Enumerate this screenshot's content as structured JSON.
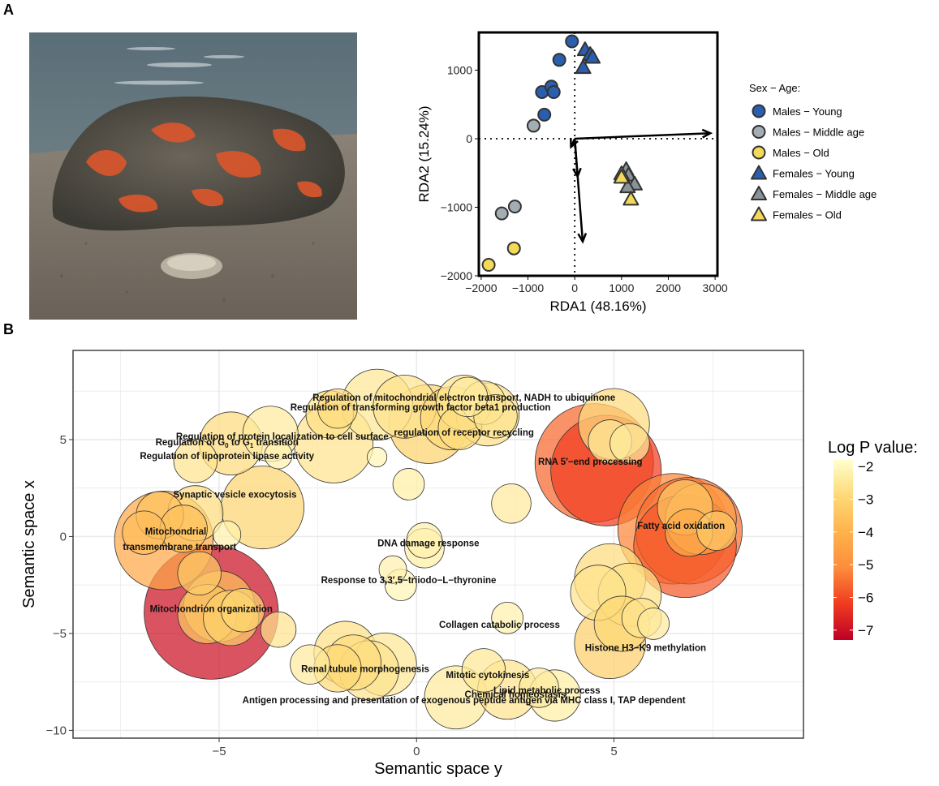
{
  "panel_a_letter": "A",
  "panel_b_letter": "B",
  "photo": {
    "description_icon": "oyster-photo-icon"
  },
  "chart_data": [
    {
      "type": "scatter",
      "xlabel": "RDA1 (48.16%)",
      "ylabel": "RDA2 (15.24%)",
      "xlim": [
        -2050,
        3050
      ],
      "ylim": [
        -2000,
        1550
      ],
      "xticks": [
        -2000,
        -1000,
        0,
        1000,
        2000,
        3000
      ],
      "xtick_labels": [
        "−2000",
        "−1000",
        "0",
        "1000",
        "2000",
        "3000"
      ],
      "yticks": [
        -2000,
        -1000,
        0,
        1000
      ],
      "ytick_labels": [
        "−2000",
        "−1000",
        "0",
        "1000"
      ],
      "grid": false,
      "legend_title": "Sex − Age:",
      "legend_position": "right",
      "series": [
        {
          "name": "Males − Young",
          "shape": "circle",
          "color": "#2a5fb0",
          "points": [
            [
              -700,
              680
            ],
            [
              -500,
              760
            ],
            [
              -450,
              680
            ],
            [
              -330,
              1150
            ],
            [
              -650,
              350
            ],
            [
              -60,
              1420
            ]
          ]
        },
        {
          "name": "Males − Middle age",
          "shape": "circle",
          "color": "#a4adb2",
          "points": [
            [
              -880,
              190
            ],
            [
              -1560,
              -1090
            ],
            [
              -1280,
              -990
            ]
          ]
        },
        {
          "name": "Males − Old",
          "shape": "circle",
          "color": "#f3d957",
          "points": [
            [
              -1300,
              -1600
            ],
            [
              -1840,
              -1840
            ]
          ]
        },
        {
          "name": "Females − Young",
          "shape": "triangle",
          "color": "#2a5fb0",
          "points": [
            [
              220,
              1300
            ],
            [
              330,
              1230
            ],
            [
              180,
              1040
            ],
            [
              380,
              1190
            ]
          ]
        },
        {
          "name": "Females − Middle age",
          "shape": "triangle",
          "color": "#8a9298",
          "points": [
            [
              1100,
              -450
            ],
            [
              1150,
              -530
            ],
            [
              1280,
              -660
            ],
            [
              1130,
              -700
            ]
          ]
        },
        {
          "name": "Females − Old",
          "shape": "triangle",
          "color": "#f3d957",
          "points": [
            [
              1000,
              -510
            ],
            [
              1000,
              -560
            ],
            [
              1200,
              -880
            ]
          ]
        }
      ],
      "arrows": [
        {
          "from": [
            0,
            0
          ],
          "to": [
            2900,
            80
          ]
        },
        {
          "from": [
            0,
            0
          ],
          "to": [
            -80,
            -120
          ]
        },
        {
          "from": [
            0,
            0
          ],
          "to": [
            60,
            -550
          ]
        },
        {
          "from": [
            0,
            0
          ],
          "to": [
            170,
            -1500
          ]
        }
      ],
      "reference_lines": {
        "x": 0,
        "y": 0,
        "style": "dotted"
      }
    },
    {
      "type": "scatter",
      "subtype": "bubble",
      "xlabel": "Semantic space y",
      "ylabel": "Semantic space x",
      "xlim": [
        -8.7,
        9.8
      ],
      "ylim": [
        -10.4,
        9.6
      ],
      "xticks": [
        -5,
        0,
        5
      ],
      "xtick_labels": [
        "−5",
        "0",
        "5"
      ],
      "yticks": [
        -10,
        -5,
        0,
        5
      ],
      "ytick_labels": [
        "−10",
        "−5",
        "0",
        "5"
      ],
      "grid": true,
      "legend_title": "Log P value:",
      "legend_position": "right",
      "colorbar": {
        "ticks": [
          -2,
          -3,
          -4,
          -5,
          -6,
          -7
        ],
        "tick_labels": [
          "−2",
          "−3",
          "−4",
          "−5",
          "−6",
          "−7"
        ],
        "range": [
          -7.3,
          -1.8
        ],
        "stops": [
          "#ffffcc",
          "#fed976",
          "#feb24c",
          "#fd8d3c",
          "#f03b20",
          "#bd0026"
        ]
      },
      "bubbles": [
        {
          "x": -5.2,
          "y": -3.9,
          "r": 1.7,
          "logp": -7.0
        },
        {
          "x": -6.4,
          "y": -0.2,
          "r": 1.25,
          "logp": -4.3
        },
        {
          "x": -5.0,
          "y": -3.6,
          "r": 0.9,
          "logp": -3.6
        },
        {
          "x": -5.3,
          "y": -4.0,
          "r": 0.75,
          "logp": -3.4
        },
        {
          "x": -4.7,
          "y": -4.2,
          "r": 0.7,
          "logp": -3.2
        },
        {
          "x": -5.5,
          "y": -1.9,
          "r": 0.55,
          "logp": -3.3
        },
        {
          "x": -4.4,
          "y": -3.8,
          "r": 0.55,
          "logp": -3.0
        },
        {
          "x": -6.5,
          "y": 1.1,
          "r": 0.6,
          "logp": -3.5
        },
        {
          "x": -5.9,
          "y": 0.4,
          "r": 0.6,
          "logp": -3.6
        },
        {
          "x": -6.9,
          "y": 0.2,
          "r": 0.55,
          "logp": -3.7
        },
        {
          "x": -5.6,
          "y": 1.2,
          "r": 0.7,
          "logp": -2.8
        },
        {
          "x": -4.8,
          "y": 0.1,
          "r": 0.35,
          "logp": -2.2
        },
        {
          "x": -3.9,
          "y": 1.5,
          "r": 1.05,
          "logp": -3.0
        },
        {
          "x": -5.6,
          "y": 3.9,
          "r": 0.55,
          "logp": -2.6
        },
        {
          "x": -4.7,
          "y": 4.8,
          "r": 0.8,
          "logp": -2.8
        },
        {
          "x": -3.7,
          "y": 5.3,
          "r": 0.7,
          "logp": -2.4
        },
        {
          "x": -3.5,
          "y": 4.2,
          "r": 0.35,
          "logp": -2.2
        },
        {
          "x": -2.2,
          "y": 6.3,
          "r": 0.6,
          "logp": -2.7
        },
        {
          "x": -2.0,
          "y": 6.6,
          "r": 0.5,
          "logp": -2.8
        },
        {
          "x": -2.1,
          "y": 4.8,
          "r": 1.0,
          "logp": -2.6
        },
        {
          "x": -1.0,
          "y": 6.8,
          "r": 0.9,
          "logp": -2.5
        },
        {
          "x": -0.3,
          "y": 6.7,
          "r": 0.8,
          "logp": -2.6
        },
        {
          "x": 0.3,
          "y": 5.8,
          "r": 1.0,
          "logp": -3.1
        },
        {
          "x": 1.2,
          "y": 6.9,
          "r": 0.7,
          "logp": -2.6
        },
        {
          "x": 0.9,
          "y": 6.1,
          "r": 0.8,
          "logp": -2.9
        },
        {
          "x": 1.8,
          "y": 6.3,
          "r": 0.8,
          "logp": -2.7
        },
        {
          "x": 1.1,
          "y": 5.6,
          "r": 0.55,
          "logp": -2.8
        },
        {
          "x": 1.7,
          "y": 6.9,
          "r": 0.55,
          "logp": -2.5
        },
        {
          "x": 1.3,
          "y": 7.2,
          "r": 0.5,
          "logp": -2.4
        },
        {
          "x": 2.0,
          "y": 6.2,
          "r": 0.55,
          "logp": -2.6
        },
        {
          "x": -1.0,
          "y": 4.1,
          "r": 0.25,
          "logp": -2.1
        },
        {
          "x": -0.2,
          "y": 2.7,
          "r": 0.4,
          "logp": -2.3
        },
        {
          "x": 2.4,
          "y": 1.7,
          "r": 0.5,
          "logp": -2.4
        },
        {
          "x": 0.2,
          "y": -0.6,
          "r": 0.5,
          "logp": -2.3
        },
        {
          "x": 0.2,
          "y": -0.2,
          "r": 0.45,
          "logp": -2.2
        },
        {
          "x": -0.6,
          "y": -1.7,
          "r": 0.35,
          "logp": -2.2
        },
        {
          "x": -0.4,
          "y": -2.5,
          "r": 0.4,
          "logp": -2.1
        },
        {
          "x": -3.5,
          "y": -4.8,
          "r": 0.45,
          "logp": -2.6
        },
        {
          "x": 2.3,
          "y": -4.2,
          "r": 0.4,
          "logp": -2.2
        },
        {
          "x": -2.7,
          "y": -6.6,
          "r": 0.5,
          "logp": -2.4
        },
        {
          "x": -1.8,
          "y": -6.0,
          "r": 0.8,
          "logp": -2.7
        },
        {
          "x": -1.6,
          "y": -6.5,
          "r": 0.7,
          "logp": -2.8
        },
        {
          "x": -1.2,
          "y": -6.9,
          "r": 0.75,
          "logp": -2.6
        },
        {
          "x": -0.8,
          "y": -6.6,
          "r": 0.8,
          "logp": -2.5
        },
        {
          "x": -2.0,
          "y": -6.8,
          "r": 0.6,
          "logp": -2.9
        },
        {
          "x": 1.0,
          "y": -8.3,
          "r": 0.8,
          "logp": -2.4
        },
        {
          "x": 1.7,
          "y": -6.9,
          "r": 0.55,
          "logp": -2.5
        },
        {
          "x": 2.3,
          "y": -7.9,
          "r": 0.75,
          "logp": -2.6
        },
        {
          "x": 3.1,
          "y": -7.8,
          "r": 0.5,
          "logp": -2.4
        },
        {
          "x": 3.5,
          "y": -8.2,
          "r": 0.65,
          "logp": -2.3
        },
        {
          "x": 4.5,
          "y": 3.8,
          "r": 1.5,
          "logp": -5.6
        },
        {
          "x": 4.8,
          "y": 3.4,
          "r": 1.4,
          "logp": -6.2
        },
        {
          "x": 5.0,
          "y": 5.8,
          "r": 0.9,
          "logp": -2.8
        },
        {
          "x": 4.9,
          "y": 4.9,
          "r": 0.55,
          "logp": -2.5
        },
        {
          "x": 5.4,
          "y": 4.8,
          "r": 0.5,
          "logp": -2.4
        },
        {
          "x": 6.5,
          "y": 0.4,
          "r": 1.4,
          "logp": -5.2
        },
        {
          "x": 6.9,
          "y": 0.3,
          "r": 1.35,
          "logp": -5.5
        },
        {
          "x": 6.8,
          "y": -0.5,
          "r": 1.3,
          "logp": -5.8
        },
        {
          "x": 7.2,
          "y": 0.9,
          "r": 0.9,
          "logp": -4.6
        },
        {
          "x": 6.8,
          "y": 1.5,
          "r": 0.7,
          "logp": -3.4
        },
        {
          "x": 6.9,
          "y": 0.2,
          "r": 0.6,
          "logp": -4.2
        },
        {
          "x": 7.6,
          "y": 0.3,
          "r": 0.5,
          "logp": -3.3
        },
        {
          "x": 4.9,
          "y": -2.2,
          "r": 0.9,
          "logp": -2.8
        },
        {
          "x": 4.6,
          "y": -2.9,
          "r": 0.7,
          "logp": -2.6
        },
        {
          "x": 5.4,
          "y": -3.0,
          "r": 0.8,
          "logp": -2.7
        },
        {
          "x": 4.9,
          "y": -5.5,
          "r": 0.9,
          "logp": -3.2
        },
        {
          "x": 5.2,
          "y": -4.5,
          "r": 0.7,
          "logp": -2.9
        },
        {
          "x": 5.7,
          "y": -4.2,
          "r": 0.5,
          "logp": -2.6
        },
        {
          "x": 6.0,
          "y": -4.5,
          "r": 0.4,
          "logp": -2.4
        }
      ],
      "annotations": [
        {
          "text": "Regulation of mitochondrial electron transport, NADH to ubiquinone",
          "x": 1.2,
          "y": 7.0
        },
        {
          "text": "Regulation of transforming growth factor beta1 production",
          "x": 0.1,
          "y": 6.5
        },
        {
          "text": "regulation of receptor recycling",
          "x": 1.2,
          "y": 5.2
        },
        {
          "text": "Regulation of protein localization to cell surface",
          "x": -3.4,
          "y": 5.0
        },
        {
          "text": "Regulation of G",
          "sub": "0",
          "mid": " to G",
          "sub2": "1",
          "tail": " transition",
          "x": -4.8,
          "y": 4.7
        },
        {
          "text": "Regulation of lipoprotein lipase activity",
          "x": -4.8,
          "y": 4.0
        },
        {
          "text": "RNA 5′−end processing",
          "x": 4.4,
          "y": 3.7
        },
        {
          "text": "Synaptic vesicle exocytosis",
          "x": -4.6,
          "y": 2.0
        },
        {
          "text": "Fatty acid oxidation",
          "x": 6.7,
          "y": 0.4
        },
        {
          "text": "Mitochondrial",
          "x": -6.1,
          "y": 0.1
        },
        {
          "text": "transmembrane transport",
          "x": -6.0,
          "y": -0.7
        },
        {
          "text": "DNA damage response",
          "x": 0.3,
          "y": -0.5
        },
        {
          "text": "Response to 3,3′,5−triiodo−L−thyronine",
          "x": -0.2,
          "y": -2.4
        },
        {
          "text": "Mitochondrion organization",
          "x": -5.2,
          "y": -3.9
        },
        {
          "text": "Collagen catabolic process",
          "x": 2.1,
          "y": -4.7
        },
        {
          "text": "Histone H3−K9 methylation",
          "x": 5.8,
          "y": -5.9
        },
        {
          "text": "Renal tubule morphogenesis",
          "x": -1.3,
          "y": -7.0
        },
        {
          "text": "Mitotic cytokinesis",
          "x": 1.8,
          "y": -7.3
        },
        {
          "text": "Lipid metabolic process",
          "x": 3.3,
          "y": -8.1
        },
        {
          "text": "Chemical homeostasis",
          "x": 2.5,
          "y": -8.3
        },
        {
          "text": "Antigen processing and presentation of exogenous peptide antigen via MHC class I, TAP dependent",
          "x": 1.2,
          "y": -8.6
        }
      ]
    }
  ]
}
